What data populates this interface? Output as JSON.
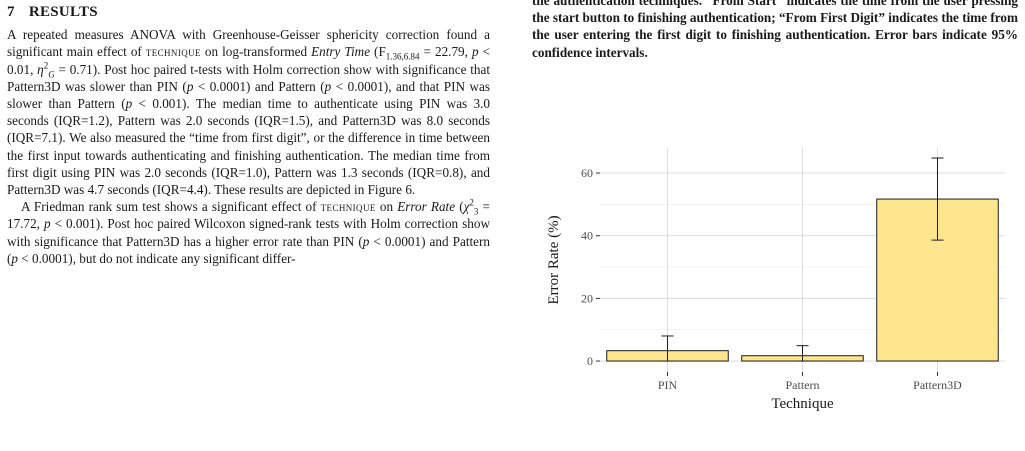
{
  "section": {
    "number": "7",
    "title": "RESULTS"
  },
  "paragraphs": [
    [
      {
        "t": "A repeated measures ANOVA with Greenhouse-Geisser sphericity correction found a significant main effect of "
      },
      {
        "t": "technique",
        "sc": true
      },
      {
        "t": " on log-transformed "
      },
      {
        "t": "Entry Time",
        "i": true
      },
      {
        "t": " (F"
      },
      {
        "t": "1.36,6.84",
        "sub": true
      },
      {
        "t": " = 22.79, "
      },
      {
        "t": "p",
        "i": true
      },
      {
        "t": " < 0.01, "
      },
      {
        "t": "η",
        "i": true
      },
      {
        "t": "2",
        "sup": true
      },
      {
        "t": "G",
        "sub": true,
        "i": true
      },
      {
        "t": " = 0.71). Post hoc paired t-tests with Holm correction show with significance that Pattern3D was slower than PIN ("
      },
      {
        "t": "p",
        "i": true
      },
      {
        "t": " < 0.0001) and Pattern ("
      },
      {
        "t": "p",
        "i": true
      },
      {
        "t": " < 0.0001), and that PIN was slower than Pattern ("
      },
      {
        "t": "p",
        "i": true
      },
      {
        "t": " < 0.001). The median time to authenticate using PIN was 3.0 seconds (IQR=1.2), Pattern was 2.0 seconds (IQR=1.5), and Pattern3D was 8.0 seconds (IQR=7.1). We also measured the “time from first digit”, or the difference in time between the first input towards authenticating and finishing authentication. The median time from first digit using PIN was 2.0 seconds (IQR=1.0), Pattern was 1.3 seconds (IQR=0.8), and Pattern3D was 4.7 seconds (IQR=4.4). These results are depicted in Figure 6."
      }
    ],
    [
      {
        "t": "A Friedman rank sum test shows a significant effect of "
      },
      {
        "t": "technique",
        "sc": true
      },
      {
        "t": " on "
      },
      {
        "t": "Error Rate",
        "i": true
      },
      {
        "t": " ("
      },
      {
        "t": "χ",
        "i": true
      },
      {
        "t": "2",
        "sup": true
      },
      {
        "t": "3",
        "sub": true
      },
      {
        "t": " = 17.72, "
      },
      {
        "t": "p",
        "i": true
      },
      {
        "t": " < 0.001). Post hoc paired Wilcoxon signed-rank tests with Holm correction show with significance that Pattern3D has a higher error rate than PIN ("
      },
      {
        "t": "p",
        "i": true
      },
      {
        "t": " < 0.0001) and Pattern ("
      },
      {
        "t": "p",
        "i": true
      },
      {
        "t": " < 0.0001), but do not indicate any significant differ-"
      }
    ]
  ],
  "caption": "the authentication techniques. “From Start” indicates the time from the user pressing the start button to finishing authentication; “From First Digit” indicates the time from the user entering the first digit to finishing authentication. Error bars indicate 95% confidence intervals.",
  "chart_data": {
    "type": "bar",
    "categories": [
      "PIN",
      "Pattern",
      "Pattern3D"
    ],
    "values": [
      3.3,
      1.7,
      51.7
    ],
    "error_low": [
      0.0,
      0.0,
      38.6
    ],
    "error_high": [
      8.0,
      4.9,
      64.8
    ],
    "xlabel": "Technique",
    "ylabel": "Error Rate (%)",
    "ylim": [
      -3.5,
      68
    ],
    "yticks": [
      0,
      20,
      40,
      60
    ],
    "grid": true,
    "colors": {
      "bar": "#fde68e",
      "bar_stroke": "#1a1a1a",
      "panel": "#ffffff",
      "grid_major": "#d9d9d9",
      "grid_minor": "#efefef",
      "axis_text": "#4d4d4d"
    }
  }
}
